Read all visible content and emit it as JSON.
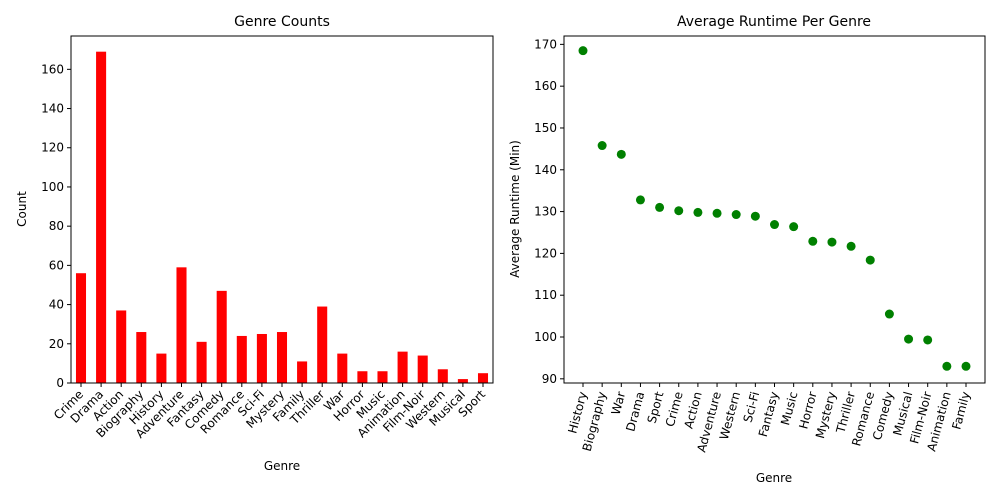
{
  "chart_data": [
    {
      "type": "bar",
      "title": "Genre Counts",
      "xlabel": "Genre",
      "ylabel": "Count",
      "color": "#ff0000",
      "categories": [
        "Crime",
        "Drama",
        "Action",
        "Biography",
        "History",
        "Adventure",
        "Fantasy",
        "Comedy",
        "Romance",
        "Sci-Fi",
        "Mystery",
        "Family",
        "Thriller",
        "War",
        "Horror",
        "Music",
        "Animation",
        "Film-Noir",
        "Western",
        "Musical",
        "Sport"
      ],
      "values": [
        56,
        169,
        37,
        26,
        15,
        59,
        21,
        47,
        24,
        25,
        26,
        11,
        39,
        15,
        6,
        6,
        16,
        14,
        7,
        2,
        5
      ],
      "ylim": [
        0,
        177
      ],
      "yticks": [
        0,
        20,
        40,
        60,
        80,
        100,
        120,
        140,
        160
      ],
      "grid": false
    },
    {
      "type": "scatter",
      "title": "Average Runtime Per Genre",
      "xlabel": "Genre",
      "ylabel": "Average Runtime (Min)",
      "color": "#008000",
      "categories": [
        "History",
        "Biography",
        "War",
        "Drama",
        "Sport",
        "Crime",
        "Action",
        "Adventure",
        "Western",
        "Sci-Fi",
        "Fantasy",
        "Music",
        "Horror",
        "Mystery",
        "Thriller",
        "Romance",
        "Comedy",
        "Musical",
        "Film-Noir",
        "Animation",
        "Family"
      ],
      "values": [
        168.5,
        145.8,
        143.7,
        132.8,
        131.0,
        130.2,
        129.8,
        129.6,
        129.3,
        128.9,
        126.9,
        126.4,
        122.9,
        122.7,
        121.7,
        118.4,
        105.5,
        99.5,
        99.3,
        93.0,
        93.0
      ],
      "ylim": [
        89,
        172
      ],
      "yticks": [
        90,
        100,
        110,
        120,
        130,
        140,
        150,
        160,
        170
      ],
      "grid": false
    }
  ]
}
